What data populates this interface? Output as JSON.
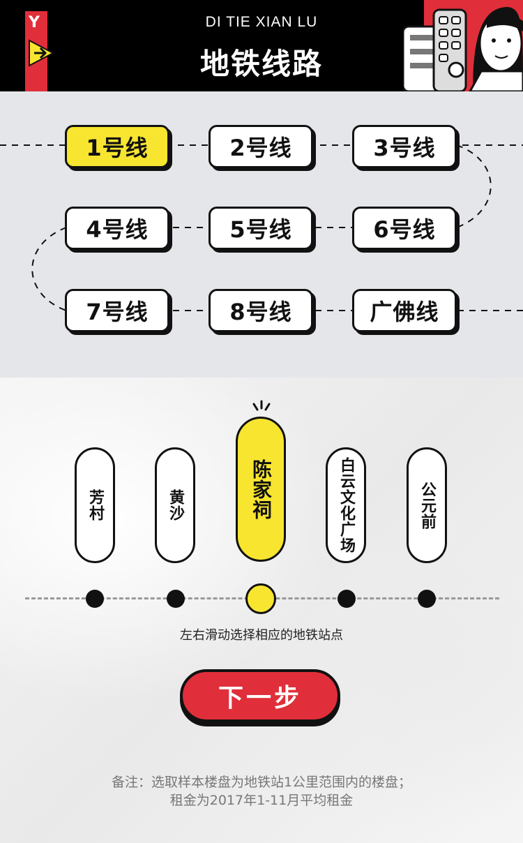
{
  "header": {
    "subtitle": "DI    TIE XIAN LU",
    "title": "地铁线路",
    "logo_mark": "Y"
  },
  "lines": [
    {
      "label": "1号线",
      "active": true
    },
    {
      "label": "2号线",
      "active": false
    },
    {
      "label": "3号线",
      "active": false
    },
    {
      "label": "4号线",
      "active": false
    },
    {
      "label": "5号线",
      "active": false
    },
    {
      "label": "6号线",
      "active": false
    },
    {
      "label": "7号线",
      "active": false
    },
    {
      "label": "8号线",
      "active": false
    },
    {
      "label": "广佛线",
      "active": false
    }
  ],
  "stations": [
    {
      "label": "芳村",
      "active": false
    },
    {
      "label": "黄沙",
      "active": false
    },
    {
      "label": "陈家祠",
      "active": true
    },
    {
      "label": "白云文化广场",
      "active": false
    },
    {
      "label": "公元前",
      "active": false
    }
  ],
  "hint": "左右滑动选择相应的地铁站点",
  "next_button": "下一步",
  "note": {
    "line1": "备注：选取样本楼盘为地铁站1公里范围内的楼盘；",
    "line2": "租金为2017年1-11月平均租金"
  },
  "colors": {
    "accent_yellow": "#f7e530",
    "accent_red": "#e02f3a",
    "ink": "#111111",
    "lines_bg": "#e4e6ea"
  },
  "icons": [
    "metro-logo-icon",
    "arrow-right-icon",
    "mascot-illustration",
    "sparkle-icon"
  ]
}
